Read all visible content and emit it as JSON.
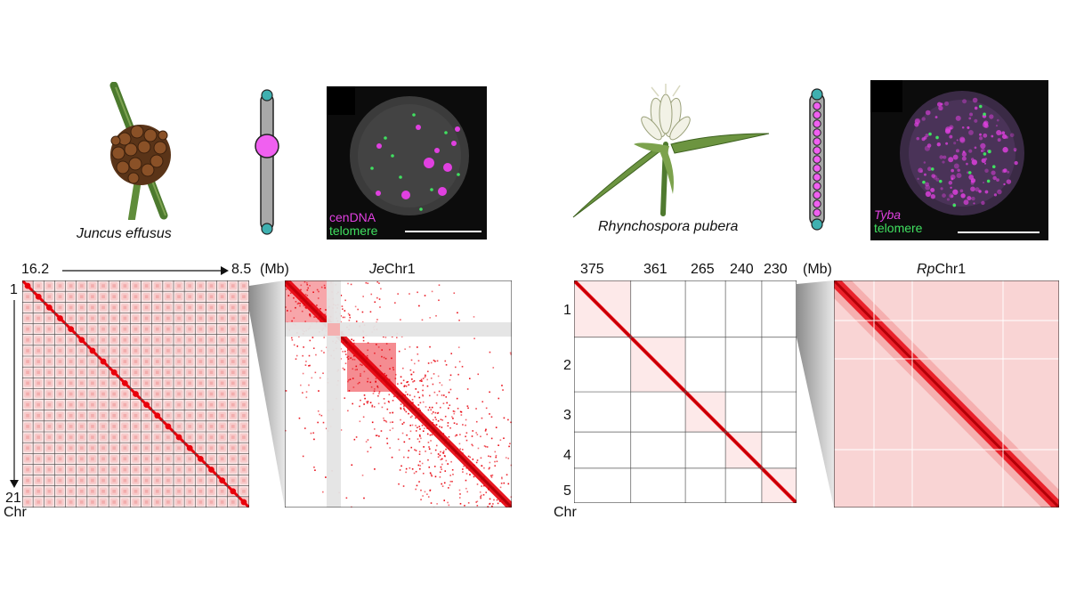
{
  "left": {
    "species_name": "Juncus effusus",
    "fish_labels": {
      "probe": "cenDNA",
      "telomere": "telomere"
    },
    "axis_start": "16.2",
    "axis_end": "8.5",
    "unit": "(Mb)",
    "chr_first": "1",
    "chr_last": "21",
    "chr_axis_label": "Chr",
    "zoom_title_prefix": "Je",
    "zoom_title_suffix": "Chr1",
    "chromosome_count": 21,
    "karyotype_type": "monocentric"
  },
  "right": {
    "species_name": "Rhynchospora pubera",
    "fish_labels": {
      "probe": "Tyba",
      "telomere": "telomere"
    },
    "sizes": [
      "375",
      "361",
      "265",
      "240",
      "230"
    ],
    "unit": "(Mb)",
    "chr_labels": [
      "1",
      "2",
      "3",
      "4",
      "5"
    ],
    "chr_axis_label": "Chr",
    "zoom_title_prefix": "Rp",
    "zoom_title_suffix": "Chr1",
    "chromosome_count": 5,
    "karyotype_type": "holocentric"
  },
  "colors": {
    "hic": "#e8000b",
    "centromere": "#f060f0",
    "telomere": "#3fb0b0",
    "fish_magenta": "#e040e0",
    "fish_green": "#40e060"
  }
}
